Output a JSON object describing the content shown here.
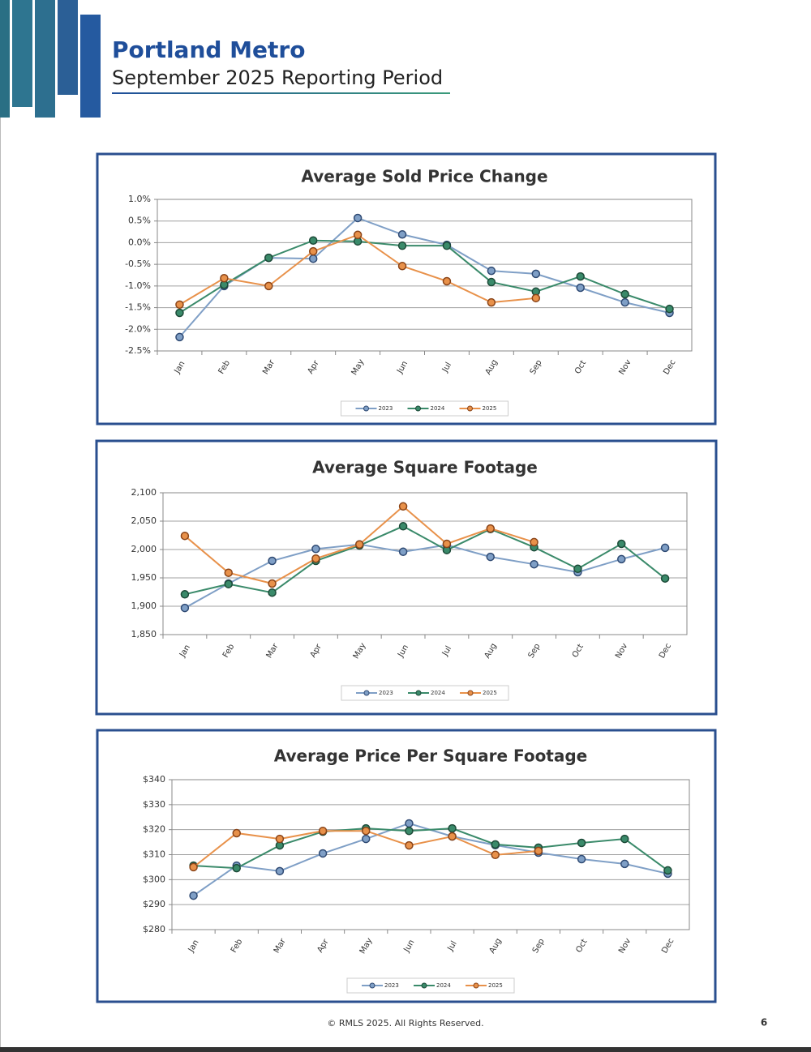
{
  "header": {
    "title": "Portland Metro",
    "subtitle": "September 2025 Reporting Period"
  },
  "chart_data": [
    {
      "type": "line",
      "title": "Average Sold Price Change",
      "categories": [
        "Jan",
        "Feb",
        "Mar",
        "Apr",
        "May",
        "Jun",
        "Jul",
        "Aug",
        "Sep",
        "Oct",
        "Nov",
        "Dec"
      ],
      "series": [
        {
          "name": "2023",
          "color": "#7f9fc6",
          "values": [
            -2.18,
            -1.0,
            -0.35,
            -0.37,
            0.57,
            0.19,
            -0.05,
            -0.65,
            -0.72,
            -1.04,
            -1.38,
            -1.62
          ]
        },
        {
          "name": "2024",
          "color": "#3a8a6a",
          "values": [
            -1.62,
            -0.97,
            -0.35,
            0.05,
            0.03,
            -0.07,
            -0.07,
            -0.91,
            -1.13,
            -0.78,
            -1.19,
            -1.53
          ]
        },
        {
          "name": "2025",
          "color": "#e8914a",
          "values": [
            -1.43,
            -0.82,
            -1.0,
            -0.2,
            0.18,
            -0.54,
            -0.89,
            -1.38,
            -1.28,
            null,
            null,
            null
          ]
        }
      ],
      "ylim": [
        -2.5,
        1.0
      ],
      "yticks": [
        {
          "value": 1.0,
          "label": "1.0%"
        },
        {
          "value": 0.5,
          "label": "0.5%"
        },
        {
          "value": 0.0,
          "label": "0.0%"
        },
        {
          "value": -0.5,
          "label": "-0.5%"
        },
        {
          "value": -1.0,
          "label": "-1.0%"
        },
        {
          "value": -1.5,
          "label": "-1.5%"
        },
        {
          "value": -2.0,
          "label": "-2.0%"
        },
        {
          "value": -2.5,
          "label": "-2.5%"
        }
      ],
      "grid": true
    },
    {
      "type": "line",
      "title": "Average Square Footage",
      "categories": [
        "Jan",
        "Feb",
        "Mar",
        "Apr",
        "May",
        "Jun",
        "Jul",
        "Aug",
        "Sep",
        "Oct",
        "Nov",
        "Dec"
      ],
      "series": [
        {
          "name": "2023",
          "color": "#7f9fc6",
          "values": [
            1897,
            1940,
            1980,
            2001,
            2009,
            1996,
            2008,
            1987,
            1974,
            1960,
            1983,
            2003
          ]
        },
        {
          "name": "2024",
          "color": "#3a8a6a",
          "values": [
            1921,
            1939,
            1924,
            1980,
            2007,
            2041,
            1999,
            2036,
            2004,
            1966,
            2010,
            1949
          ]
        },
        {
          "name": "2025",
          "color": "#e8914a",
          "values": [
            2024,
            1959,
            1940,
            1984,
            2009,
            2076,
            2010,
            2037,
            2013,
            null,
            null,
            null
          ]
        }
      ],
      "ylim": [
        1850,
        2100
      ],
      "yticks": [
        {
          "value": 2100,
          "label": "2,100"
        },
        {
          "value": 2050,
          "label": "2,050"
        },
        {
          "value": 2000,
          "label": "2,000"
        },
        {
          "value": 1950,
          "label": "1,950"
        },
        {
          "value": 1900,
          "label": "1,900"
        },
        {
          "value": 1850,
          "label": "1,850"
        }
      ],
      "grid": true
    },
    {
      "type": "line",
      "title": "Average Price Per Square Footage",
      "categories": [
        "Jan",
        "Feb",
        "Mar",
        "Apr",
        "May",
        "Jun",
        "Jul",
        "Aug",
        "Sep",
        "Oct",
        "Nov",
        "Dec"
      ],
      "series": [
        {
          "name": "2023",
          "color": "#7f9fc6",
          "values": [
            293.6,
            305.6,
            303.4,
            310.5,
            316.3,
            322.5,
            317.3,
            313.8,
            310.8,
            308.2,
            306.3,
            302.4
          ]
        },
        {
          "name": "2024",
          "color": "#3a8a6a",
          "values": [
            305.6,
            304.6,
            313.7,
            319.2,
            320.5,
            319.5,
            320.5,
            314.1,
            312.8,
            314.7,
            316.3,
            303.7
          ]
        },
        {
          "name": "2025",
          "color": "#e8914a",
          "values": [
            305.0,
            318.6,
            316.3,
            319.5,
            319.5,
            313.7,
            317.3,
            309.9,
            311.5,
            null,
            null,
            null
          ]
        }
      ],
      "ylim": [
        280,
        340
      ],
      "yticks": [
        {
          "value": 340,
          "label": "$340"
        },
        {
          "value": 330,
          "label": "$330"
        },
        {
          "value": 320,
          "label": "$320"
        },
        {
          "value": 310,
          "label": "$310"
        },
        {
          "value": 300,
          "label": "$300"
        },
        {
          "value": 290,
          "label": "$290"
        },
        {
          "value": 280,
          "label": "$280"
        }
      ],
      "grid": true
    }
  ],
  "footer": {
    "copyright": "© RMLS 2025. All Rights Reserved.",
    "page": 6
  }
}
